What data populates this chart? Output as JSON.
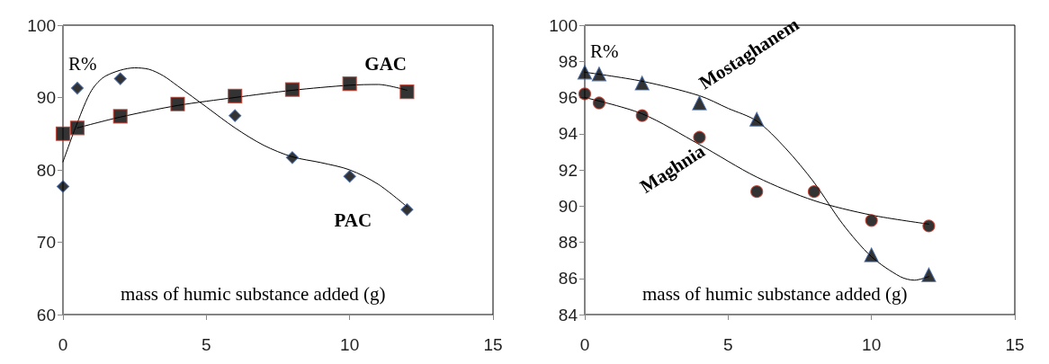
{
  "chart_data": [
    {
      "type": "scatter",
      "ylabel": "R%",
      "xlabel": "mass of humic substance added (g)",
      "xlim": [
        0,
        15
      ],
      "xticks": [
        0,
        5,
        10,
        15
      ],
      "ylim": [
        60,
        100
      ],
      "yticks": [
        60,
        70,
        80,
        90,
        100
      ],
      "grid": false,
      "series": [
        {
          "name": "PAC",
          "color": "#000000",
          "marker": "diamond",
          "x": [
            0,
            0.5,
            2,
            4,
            6,
            8,
            10,
            12
          ],
          "values": [
            77.7,
            91.3,
            92.6,
            null,
            87.5,
            81.7,
            79.1,
            74.5
          ]
        },
        {
          "name": "GAC",
          "color": "#000000",
          "marker": "square",
          "x": [
            0,
            0.5,
            2,
            4,
            6,
            8,
            10,
            12
          ],
          "values": [
            85.0,
            85.8,
            87.4,
            89.1,
            90.2,
            91.1,
            91.9,
            90.8
          ]
        },
        {
          "type": "line",
          "color": "#000000",
          "marker": "none",
          "x": [
            0,
            0.5,
            1,
            1.5,
            2.5,
            3,
            3.5,
            4,
            5,
            6,
            7,
            8,
            9,
            10,
            11,
            12
          ],
          "values": [
            81.1,
            86.5,
            91.0,
            93.0,
            94.1,
            93.9,
            93.0,
            91.6,
            88.7,
            85.8,
            83.4,
            81.8,
            81.0,
            80.0,
            78.0,
            74.9
          ]
        },
        {
          "type": "line",
          "color": "#000000",
          "marker": "none",
          "x": [
            0.5,
            2,
            4,
            6,
            8,
            10,
            11,
            12
          ],
          "values": [
            85.8,
            87.3,
            88.9,
            90.0,
            91.0,
            91.7,
            91.8,
            91.0
          ]
        }
      ]
    },
    {
      "type": "scatter",
      "ylabel": "R%",
      "xlabel": "mass of humic substance added (g)",
      "xlim": [
        0,
        15
      ],
      "xticks": [
        0,
        5,
        10,
        15
      ],
      "ylim": [
        84,
        100
      ],
      "yticks": [
        84,
        86,
        88,
        90,
        92,
        94,
        96,
        98,
        100
      ],
      "grid": false,
      "series": [
        {
          "name": "Mostaghanem",
          "color": "#000000",
          "marker": "triangle",
          "x": [
            0,
            0.5,
            2,
            4,
            6,
            8,
            10,
            12
          ],
          "values": [
            97.4,
            97.3,
            96.8,
            95.7,
            94.8,
            null,
            87.3,
            86.2
          ]
        },
        {
          "name": "Maghnia",
          "color": "#000000",
          "marker": "circle",
          "x": [
            0,
            0.5,
            2,
            4,
            6,
            8,
            10,
            12
          ],
          "values": [
            96.2,
            95.7,
            95.0,
            93.8,
            90.8,
            90.8,
            89.2,
            88.9
          ]
        },
        {
          "type": "line",
          "color": "#000000",
          "marker": "none",
          "x": [
            0,
            2,
            4,
            5,
            6,
            7,
            8,
            9,
            10,
            11,
            11.5,
            12
          ],
          "values": [
            97.4,
            96.9,
            96.1,
            95.4,
            94.7,
            93.2,
            91.3,
            89.0,
            87.2,
            86.1,
            85.9,
            86.1
          ]
        },
        {
          "type": "line",
          "color": "#000000",
          "marker": "none",
          "x": [
            0,
            2,
            4,
            6,
            8,
            10,
            12
          ],
          "values": [
            96.0,
            95.1,
            93.4,
            91.6,
            90.3,
            89.5,
            89.0
          ]
        }
      ]
    }
  ]
}
